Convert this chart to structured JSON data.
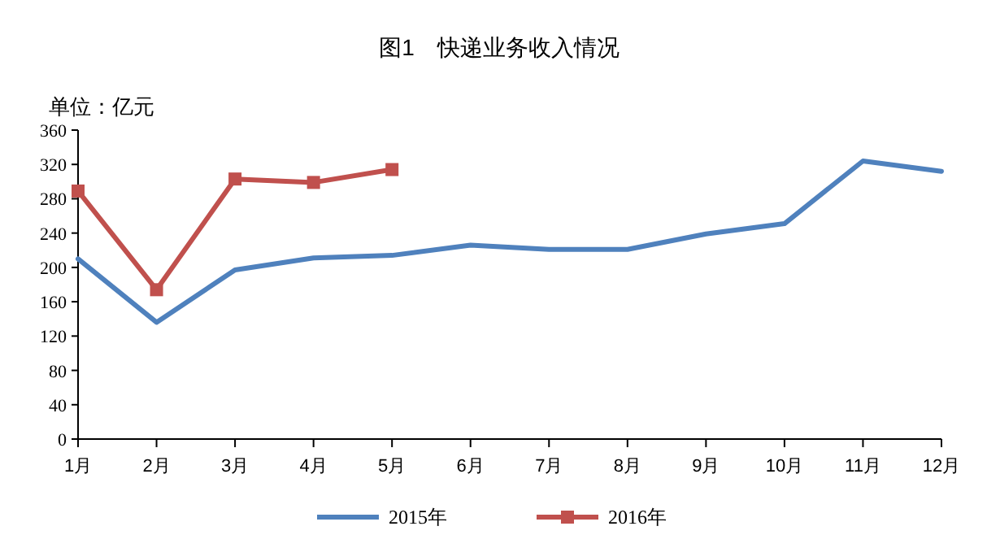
{
  "chart_data": {
    "type": "line",
    "title": "图1　快递业务收入情况",
    "annotations": [
      "单位：亿元"
    ],
    "categories": [
      "1月",
      "2月",
      "3月",
      "4月",
      "5月",
      "6月",
      "7月",
      "8月",
      "9月",
      "10月",
      "11月",
      "12月"
    ],
    "series": [
      {
        "name": "2015年",
        "color": "#4f81bd",
        "marker": "none",
        "values": [
          210,
          136,
          197,
          211,
          214,
          226,
          221,
          221,
          239,
          251,
          324,
          312
        ]
      },
      {
        "name": "2016年",
        "color": "#c0504d",
        "marker": "square",
        "values": [
          289,
          174,
          303,
          299,
          314,
          null,
          null,
          null,
          null,
          null,
          null,
          null
        ]
      }
    ],
    "ylim": [
      0,
      360
    ],
    "yticks": [
      0,
      40,
      80,
      120,
      160,
      200,
      240,
      280,
      320,
      360
    ],
    "legend": "bottom"
  }
}
